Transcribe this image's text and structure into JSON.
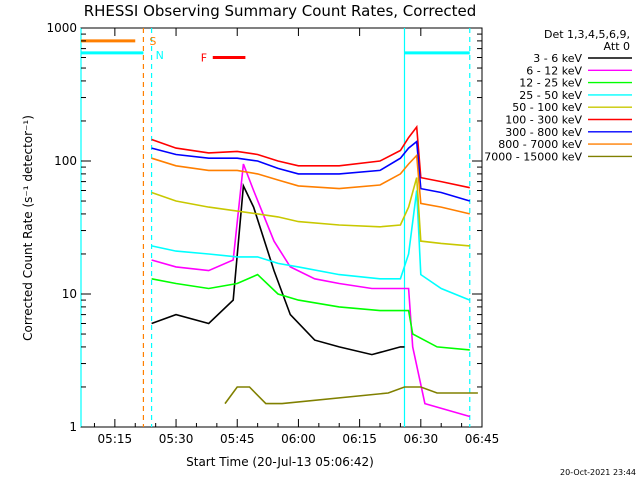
{
  "chart_data": {
    "type": "line",
    "title": "RHESSI Observing Summary Count Rates, Corrected",
    "xlabel": "Start Time (20-Jul-13 05:06:42)",
    "ylabel": "Corrected Count Rate (s⁻¹ detector⁻¹)",
    "y_scale": "log",
    "ylim": [
      1,
      1000
    ],
    "xlim_minutes": [
      "05:06:42",
      "06:45:00"
    ],
    "x_tick_labels": [
      "05:15",
      "05:30",
      "05:45",
      "06:00",
      "06:15",
      "06:30",
      "06:45"
    ],
    "y_tick_labels": [
      "1",
      "10",
      "100",
      "1000"
    ],
    "legend_header": [
      "Det 1,3,4,5,6,9,",
      "Att 0"
    ],
    "legend_position": "right",
    "timestamp": "20-Oct-2021 23:44",
    "flags": [
      {
        "label": "S",
        "color": "#ff7f00"
      },
      {
        "label": "N",
        "color": "#00ffff"
      },
      {
        "label": "F",
        "color": "#ff0000"
      }
    ],
    "series": [
      {
        "name": "3 - 6 keV",
        "color": "#000000",
        "x": [
          "05:24:00",
          "05:30:00",
          "05:38:00",
          "05:44:00",
          "05:46:30",
          "05:49:00",
          "05:54:00",
          "05:58:00",
          "06:04:00",
          "06:10:00",
          "06:18:00",
          "06:25:00",
          "06:26:00"
        ],
        "y": [
          6,
          7,
          6,
          9,
          65,
          45,
          15,
          7,
          4.5,
          4,
          3.5,
          4,
          4
        ]
      },
      {
        "name": "6 - 12 keV",
        "color": "#ff00ff",
        "x": [
          "05:24:00",
          "05:30:00",
          "05:38:00",
          "05:44:00",
          "05:46:30",
          "05:49:00",
          "05:54:00",
          "05:58:00",
          "06:04:00",
          "06:10:00",
          "06:18:00",
          "06:25:00",
          "06:27:00",
          "06:28:00",
          "06:31:00",
          "06:42:00"
        ],
        "y": [
          18,
          16,
          15,
          18,
          95,
          60,
          25,
          16,
          13,
          12,
          11,
          11,
          11,
          4,
          1.5,
          1.2
        ]
      },
      {
        "name": "12 - 25 keV",
        "color": "#00ff00",
        "x": [
          "05:24:00",
          "05:30:00",
          "05:38:00",
          "05:45:00",
          "05:50:00",
          "05:55:00",
          "06:00:00",
          "06:10:00",
          "06:20:00",
          "06:25:00",
          "06:27:00",
          "06:28:00",
          "06:34:00",
          "06:42:00"
        ],
        "y": [
          13,
          12,
          11,
          12,
          14,
          10,
          9,
          8,
          7.5,
          7.5,
          7.5,
          5,
          4,
          3.8
        ]
      },
      {
        "name": "25 - 50 keV",
        "color": "#00ffff",
        "x": [
          "05:24:00",
          "05:30:00",
          "05:38:00",
          "05:45:00",
          "05:50:00",
          "05:55:00",
          "06:00:00",
          "06:10:00",
          "06:20:00",
          "06:25:00",
          "06:27:00",
          "06:29:00",
          "06:30:00",
          "06:35:00",
          "06:42:00"
        ],
        "y": [
          23,
          21,
          20,
          19,
          19,
          17,
          16,
          14,
          13,
          13,
          20,
          60,
          14,
          11,
          9
        ]
      },
      {
        "name": "50 - 100 keV",
        "color": "#c8c800",
        "x": [
          "05:24:00",
          "05:30:00",
          "05:38:00",
          "05:45:00",
          "05:50:00",
          "05:55:00",
          "06:00:00",
          "06:10:00",
          "06:20:00",
          "06:25:00",
          "06:27:00",
          "06:29:00",
          "06:30:00",
          "06:35:00",
          "06:42:00"
        ],
        "y": [
          58,
          50,
          45,
          42,
          40,
          38,
          35,
          33,
          32,
          33,
          45,
          75,
          25,
          24,
          23
        ]
      },
      {
        "name": "100 - 300 keV",
        "color": "#ff0000",
        "x": [
          "05:24:00",
          "05:30:00",
          "05:38:00",
          "05:45:00",
          "05:50:00",
          "05:55:00",
          "06:00:00",
          "06:10:00",
          "06:20:00",
          "06:25:00",
          "06:27:00",
          "06:29:00",
          "06:30:00",
          "06:35:00",
          "06:42:00"
        ],
        "y": [
          145,
          125,
          115,
          118,
          112,
          100,
          92,
          92,
          100,
          120,
          150,
          180,
          75,
          70,
          63
        ]
      },
      {
        "name": "300 - 800 keV",
        "color": "#0000ff",
        "x": [
          "05:24:00",
          "05:30:00",
          "05:38:00",
          "05:45:00",
          "05:50:00",
          "05:55:00",
          "06:00:00",
          "06:10:00",
          "06:20:00",
          "06:25:00",
          "06:27:00",
          "06:29:00",
          "06:30:00",
          "06:35:00",
          "06:42:00"
        ],
        "y": [
          125,
          112,
          105,
          105,
          100,
          88,
          80,
          80,
          85,
          105,
          125,
          140,
          62,
          58,
          50
        ]
      },
      {
        "name": "800 - 7000 keV",
        "color": "#ff7f00",
        "x": [
          "05:24:00",
          "05:30:00",
          "05:38:00",
          "05:45:00",
          "05:50:00",
          "05:55:00",
          "06:00:00",
          "06:10:00",
          "06:20:00",
          "06:25:00",
          "06:27:00",
          "06:29:00",
          "06:30:00",
          "06:35:00",
          "06:42:00"
        ],
        "y": [
          105,
          92,
          85,
          85,
          80,
          72,
          65,
          62,
          66,
          80,
          95,
          110,
          48,
          45,
          40
        ]
      },
      {
        "name": "7000 - 15000 keV",
        "color": "#808000",
        "x": [
          "05:42:00",
          "05:45:00",
          "05:48:00",
          "05:52:00",
          "05:56:00",
          "06:22:00",
          "06:26:00",
          "06:30:00",
          "06:34:00",
          "06:40:00",
          "06:44:00"
        ],
        "y": [
          1.5,
          2,
          2,
          1.5,
          1.5,
          1.8,
          2,
          2,
          1.8,
          1.8,
          1.8
        ]
      }
    ],
    "flag_bars": [
      {
        "label": "S",
        "color": "#ff7f00",
        "x": [
          "05:06:42",
          "05:20:00"
        ],
        "y": 800
      },
      {
        "label": "N",
        "color": "#00ffff",
        "x": [
          "05:06:42",
          "05:22:00"
        ],
        "y": 650
      },
      {
        "label": "N",
        "color": "#00ffff",
        "x": [
          "06:26:00",
          "06:42:00"
        ],
        "y": 650
      },
      {
        "label": "F",
        "color": "#ff0000",
        "x": [
          "05:39:00",
          "05:47:00"
        ],
        "y": 600
      }
    ],
    "markers": [
      {
        "color": "#00ffff",
        "style": "solid",
        "x": "05:06:42"
      },
      {
        "color": "#ff7f00",
        "style": "dashed",
        "x": "05:22:00"
      },
      {
        "color": "#00ffff",
        "style": "dashed",
        "x": "05:24:00"
      },
      {
        "color": "#00ffff",
        "style": "solid",
        "x": "06:26:00"
      },
      {
        "color": "#00ffff",
        "style": "dashed",
        "x": "06:42:00"
      }
    ]
  }
}
